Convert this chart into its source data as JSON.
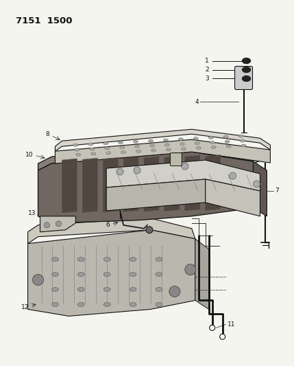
{
  "title": "7151  1500",
  "bg_color": "#f5f5f0",
  "text_color": "#111111",
  "fig_width": 4.29,
  "fig_height": 5.33,
  "dpi": 100
}
